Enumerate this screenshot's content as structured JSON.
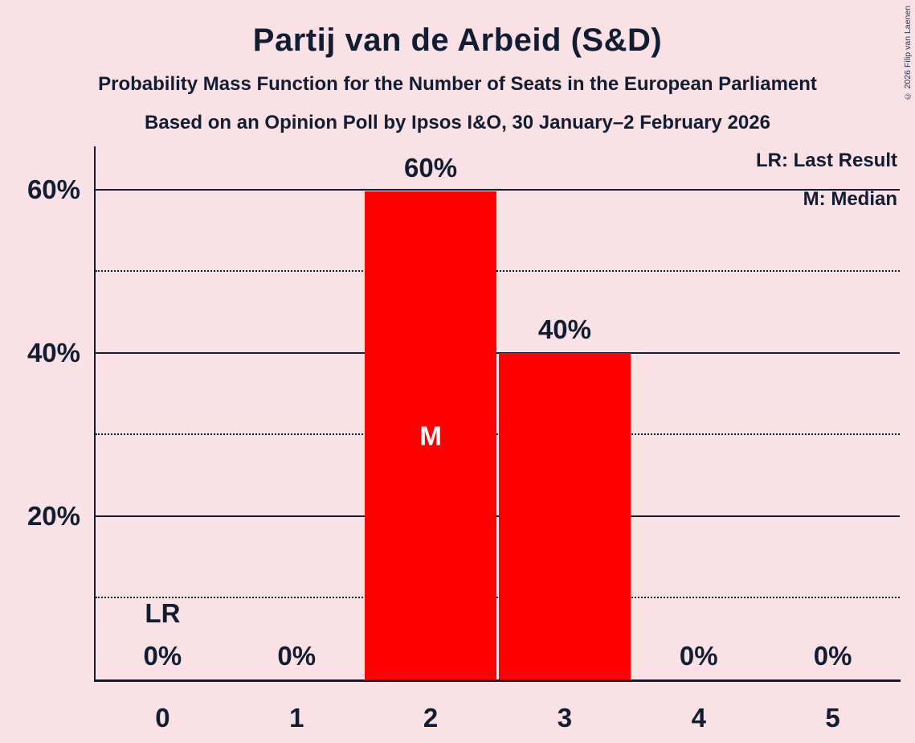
{
  "copyright": "© 2026 Filip van Laenen",
  "legend": {
    "lr": "LR: Last Result",
    "m": "M: Median"
  },
  "colors": {
    "background": "#fae1e5",
    "bar": "#ff0000",
    "text": "#121d33",
    "median_label": "#ffffff"
  },
  "chart_data": {
    "type": "bar",
    "title": "Partij van de Arbeid (S&D)",
    "subtitle": "Probability Mass Function for the Number of Seats in the European Parliament",
    "sub_subtitle": "Based on an Opinion Poll by Ipsos I&O, 30 January–2 February 2026",
    "categories": [
      "0",
      "1",
      "2",
      "3",
      "4",
      "5"
    ],
    "values": [
      0,
      0,
      59.8,
      40,
      0,
      0
    ],
    "bar_labels": [
      "0%",
      "0%",
      "60%",
      "40%",
      "0%",
      "0%"
    ],
    "y_ticks": [
      "20%",
      "40%",
      "60%"
    ],
    "y_tick_values": [
      20,
      40,
      60
    ],
    "ylim": [
      0,
      65.3
    ],
    "gridlines": {
      "major": [
        20,
        40,
        60
      ],
      "minor": [
        10,
        30,
        50
      ]
    },
    "annotations": {
      "median_marker": "M",
      "median_category_index": 2,
      "last_result_marker": "LR",
      "last_result_category_index": 0
    },
    "legend_position": "top-right",
    "xlabel": "",
    "ylabel": ""
  }
}
